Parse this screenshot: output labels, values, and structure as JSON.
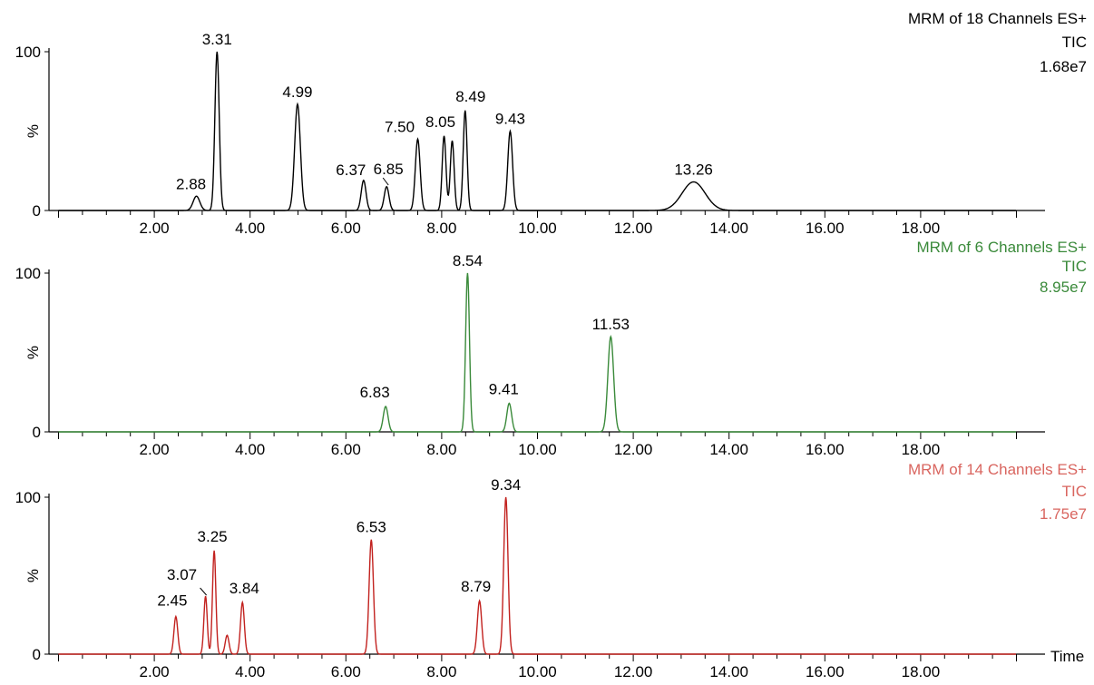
{
  "chart_data": [
    {
      "type": "line",
      "header": [
        "MRM of 18 Channels ES+",
        "TIC",
        "1.68e7"
      ],
      "color": "#000000",
      "ylabel": "%",
      "y_ticks": [
        "0",
        "100"
      ],
      "xlim": [
        0,
        20
      ],
      "x_tick_labels": [
        "2.00",
        "4.00",
        "6.00",
        "8.00",
        "10.00",
        "12.00",
        "14.00",
        "16.00",
        "18.00"
      ],
      "x_tick_values": [
        2,
        4,
        6,
        8,
        10,
        12,
        14,
        16,
        18
      ],
      "peaks": [
        {
          "rt": 2.88,
          "label": "2.88",
          "height": 9,
          "width": 0.07
        },
        {
          "rt": 3.31,
          "label": "3.31",
          "height": 100,
          "width": 0.045
        },
        {
          "rt": 4.99,
          "label": "4.99",
          "height": 67,
          "width": 0.06
        },
        {
          "rt": 6.37,
          "label": "6.37",
          "height": 19,
          "width": 0.05
        },
        {
          "rt": 6.85,
          "label": "6.85",
          "height": 15,
          "width": 0.05
        },
        {
          "rt": 7.5,
          "label": "7.50",
          "height": 45,
          "width": 0.05
        },
        {
          "rt": 8.05,
          "label": "8.05",
          "height": 47,
          "width": 0.04
        },
        {
          "rt": 8.22,
          "label": "",
          "height": 44,
          "width": 0.04
        },
        {
          "rt": 8.49,
          "label": "8.49",
          "height": 63,
          "width": 0.04
        },
        {
          "rt": 9.43,
          "label": "9.43",
          "height": 50,
          "width": 0.05
        },
        {
          "rt": 13.26,
          "label": "13.26",
          "height": 18,
          "width": 0.24
        }
      ]
    },
    {
      "type": "line",
      "header": [
        "MRM of 6 Channels ES+",
        "TIC",
        "8.95e7"
      ],
      "color": "#3a8a3a",
      "ylabel": "%",
      "y_ticks": [
        "0",
        "100"
      ],
      "xlim": [
        0,
        20
      ],
      "x_tick_labels": [
        "2.00",
        "4.00",
        "6.00",
        "8.00",
        "10.00",
        "12.00",
        "14.00",
        "16.00",
        "18.00"
      ],
      "x_tick_values": [
        2,
        4,
        6,
        8,
        10,
        12,
        14,
        16,
        18
      ],
      "peaks": [
        {
          "rt": 6.83,
          "label": "6.83",
          "height": 16,
          "width": 0.05
        },
        {
          "rt": 8.54,
          "label": "8.54",
          "height": 100,
          "width": 0.04
        },
        {
          "rt": 9.41,
          "label": "9.41",
          "height": 18,
          "width": 0.05
        },
        {
          "rt": 11.53,
          "label": "11.53",
          "height": 60,
          "width": 0.06
        }
      ]
    },
    {
      "type": "line",
      "header": [
        "MRM of 14 Channels ES+",
        "TIC",
        "1.75e7"
      ],
      "color": "#c2221f",
      "header_color": "#d9655f",
      "ylabel": "%",
      "xlabel": "Time",
      "y_ticks": [
        "0",
        "100"
      ],
      "xlim": [
        0,
        20
      ],
      "x_tick_labels": [
        "2.00",
        "4.00",
        "6.00",
        "8.00",
        "10.00",
        "12.00",
        "14.00",
        "16.00",
        "18.00"
      ],
      "x_tick_values": [
        2,
        4,
        6,
        8,
        10,
        12,
        14,
        16,
        18
      ],
      "peaks": [
        {
          "rt": 2.45,
          "label": "2.45",
          "height": 24,
          "width": 0.04
        },
        {
          "rt": 3.07,
          "label": "3.07",
          "height": 37,
          "width": 0.035
        },
        {
          "rt": 3.25,
          "label": "3.25",
          "height": 66,
          "width": 0.035
        },
        {
          "rt": 3.52,
          "label": "",
          "height": 12,
          "width": 0.04
        },
        {
          "rt": 3.84,
          "label": "3.84",
          "height": 33,
          "width": 0.04
        },
        {
          "rt": 6.53,
          "label": "6.53",
          "height": 73,
          "width": 0.045
        },
        {
          "rt": 8.79,
          "label": "8.79",
          "height": 34,
          "width": 0.045
        },
        {
          "rt": 9.34,
          "label": "9.34",
          "height": 100,
          "width": 0.045
        }
      ]
    }
  ]
}
